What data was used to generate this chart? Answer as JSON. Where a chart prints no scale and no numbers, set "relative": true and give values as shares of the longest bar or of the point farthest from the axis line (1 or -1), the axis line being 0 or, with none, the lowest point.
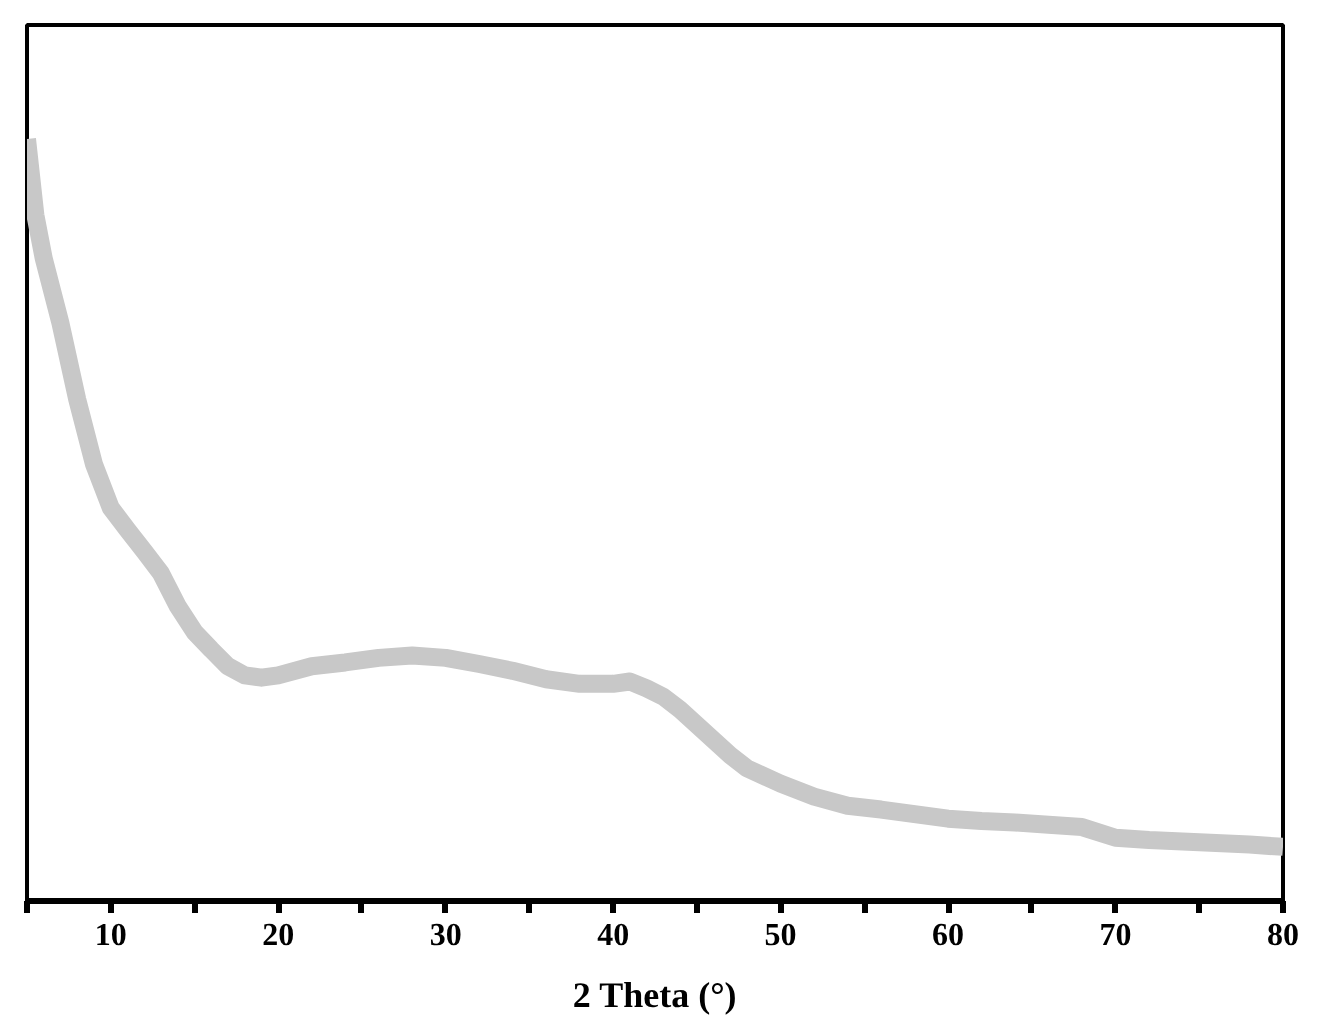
{
  "chart_data": {
    "type": "line",
    "relative": true,
    "xlabel": "2 Theta (°)",
    "x": [
      5,
      5.5,
      6,
      7,
      8,
      9,
      10,
      11,
      12,
      13,
      14,
      15,
      16,
      17,
      18,
      19,
      20,
      22,
      24,
      26,
      28,
      30,
      32,
      34,
      36,
      38,
      40,
      41,
      42,
      43,
      44,
      45,
      46,
      47,
      48,
      50,
      52,
      54,
      56,
      58,
      60,
      62,
      64,
      66,
      68,
      70,
      72,
      74,
      76,
      78,
      80
    ],
    "series": [
      {
        "color": "#c8c8c8",
        "values": [
          1.0,
          0.9,
          0.843,
          0.758,
          0.658,
          0.573,
          0.516,
          0.487,
          0.459,
          0.43,
          0.387,
          0.353,
          0.33,
          0.308,
          0.296,
          0.293,
          0.296,
          0.308,
          0.313,
          0.319,
          0.322,
          0.319,
          0.311,
          0.302,
          0.291,
          0.285,
          0.285,
          0.288,
          0.279,
          0.268,
          0.251,
          0.231,
          0.211,
          0.191,
          0.174,
          0.154,
          0.137,
          0.125,
          0.12,
          0.114,
          0.108,
          0.105,
          0.103,
          0.1,
          0.097,
          0.083,
          0.08,
          0.078,
          0.076,
          0.074,
          0.071
        ]
      }
    ],
    "xlim": [
      5,
      80
    ],
    "xticks": [
      {
        "value": 5,
        "label": null
      },
      10,
      {
        "value": 15,
        "label": null
      },
      20,
      {
        "value": 25,
        "label": null
      },
      30,
      {
        "value": 35,
        "label": null
      },
      40,
      {
        "value": 45,
        "label": null
      },
      50,
      {
        "value": 55,
        "label": null
      },
      60,
      {
        "value": 65,
        "label": null
      },
      70,
      {
        "value": 75,
        "label": null
      },
      80
    ],
    "grid": false,
    "marker": "none",
    "line_style": "solid"
  }
}
